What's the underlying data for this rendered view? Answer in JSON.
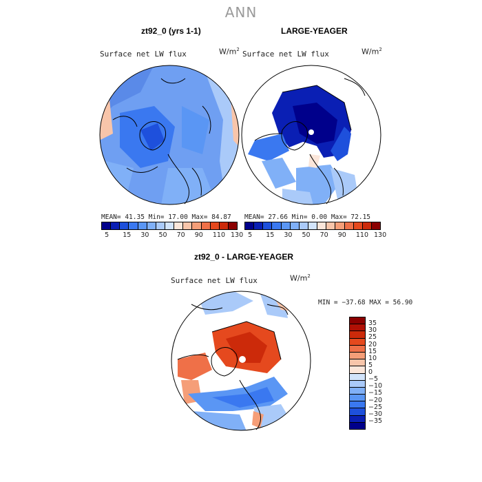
{
  "figure": {
    "title": "ANN"
  },
  "panels": [
    {
      "title": "zt92_0 (yrs 1-1)",
      "variable": "Surface net LW flux",
      "units_base": "W/m",
      "units_exp": "2",
      "stats": "MEAN=  41.35  Min=  17.00  Max=  84.87",
      "colorbar_ticks": [
        "5",
        "15",
        "30",
        "50",
        "70",
        "90",
        "110",
        "130"
      ],
      "palette": [
        "#00008b",
        "#0a1fb4",
        "#1e50dc",
        "#3a78f0",
        "#5a96f4",
        "#80b0f7",
        "#aacaf9",
        "#d2e4fb",
        "#fbe6da",
        "#f8c5aa",
        "#f59e78",
        "#ef7048",
        "#e5491e",
        "#cc2a0a",
        "#8b0000"
      ]
    },
    {
      "title": "LARGE-YEAGER",
      "variable": "Surface net LW flux",
      "units_base": "W/m",
      "units_exp": "2",
      "stats": "MEAN=  27.66  Min=   0.00  Max=  72.15",
      "colorbar_ticks": [
        "5",
        "15",
        "30",
        "50",
        "70",
        "90",
        "110",
        "130"
      ],
      "palette": [
        "#00008b",
        "#0a1fb4",
        "#1e50dc",
        "#3a78f0",
        "#5a96f4",
        "#80b0f7",
        "#aacaf9",
        "#d2e4fb",
        "#fbe6da",
        "#f8c5aa",
        "#f59e78",
        "#ef7048",
        "#e5491e",
        "#cc2a0a",
        "#8b0000"
      ]
    },
    {
      "title": "zt92_0 - LARGE-YEAGER",
      "variable": "Surface net LW flux",
      "units_base": "W/m",
      "units_exp": "2",
      "stats": "MIN = −37.68 MAX =  56.90",
      "colorbar_ticks": [
        "35",
        "30",
        "25",
        "20",
        "15",
        "10",
        "5",
        "0",
        "−5",
        "−10",
        "−15",
        "−20",
        "−25",
        "−30",
        "−35"
      ],
      "palette": [
        "#8b0000",
        "#b01005",
        "#cc2a0a",
        "#e5491e",
        "#ef7048",
        "#f59e78",
        "#f8c5aa",
        "#fbe6da",
        "#d2e4fb",
        "#aacaf9",
        "#80b0f7",
        "#5a96f4",
        "#3a78f0",
        "#1e50dc",
        "#0a1fb4",
        "#00008b"
      ]
    }
  ]
}
